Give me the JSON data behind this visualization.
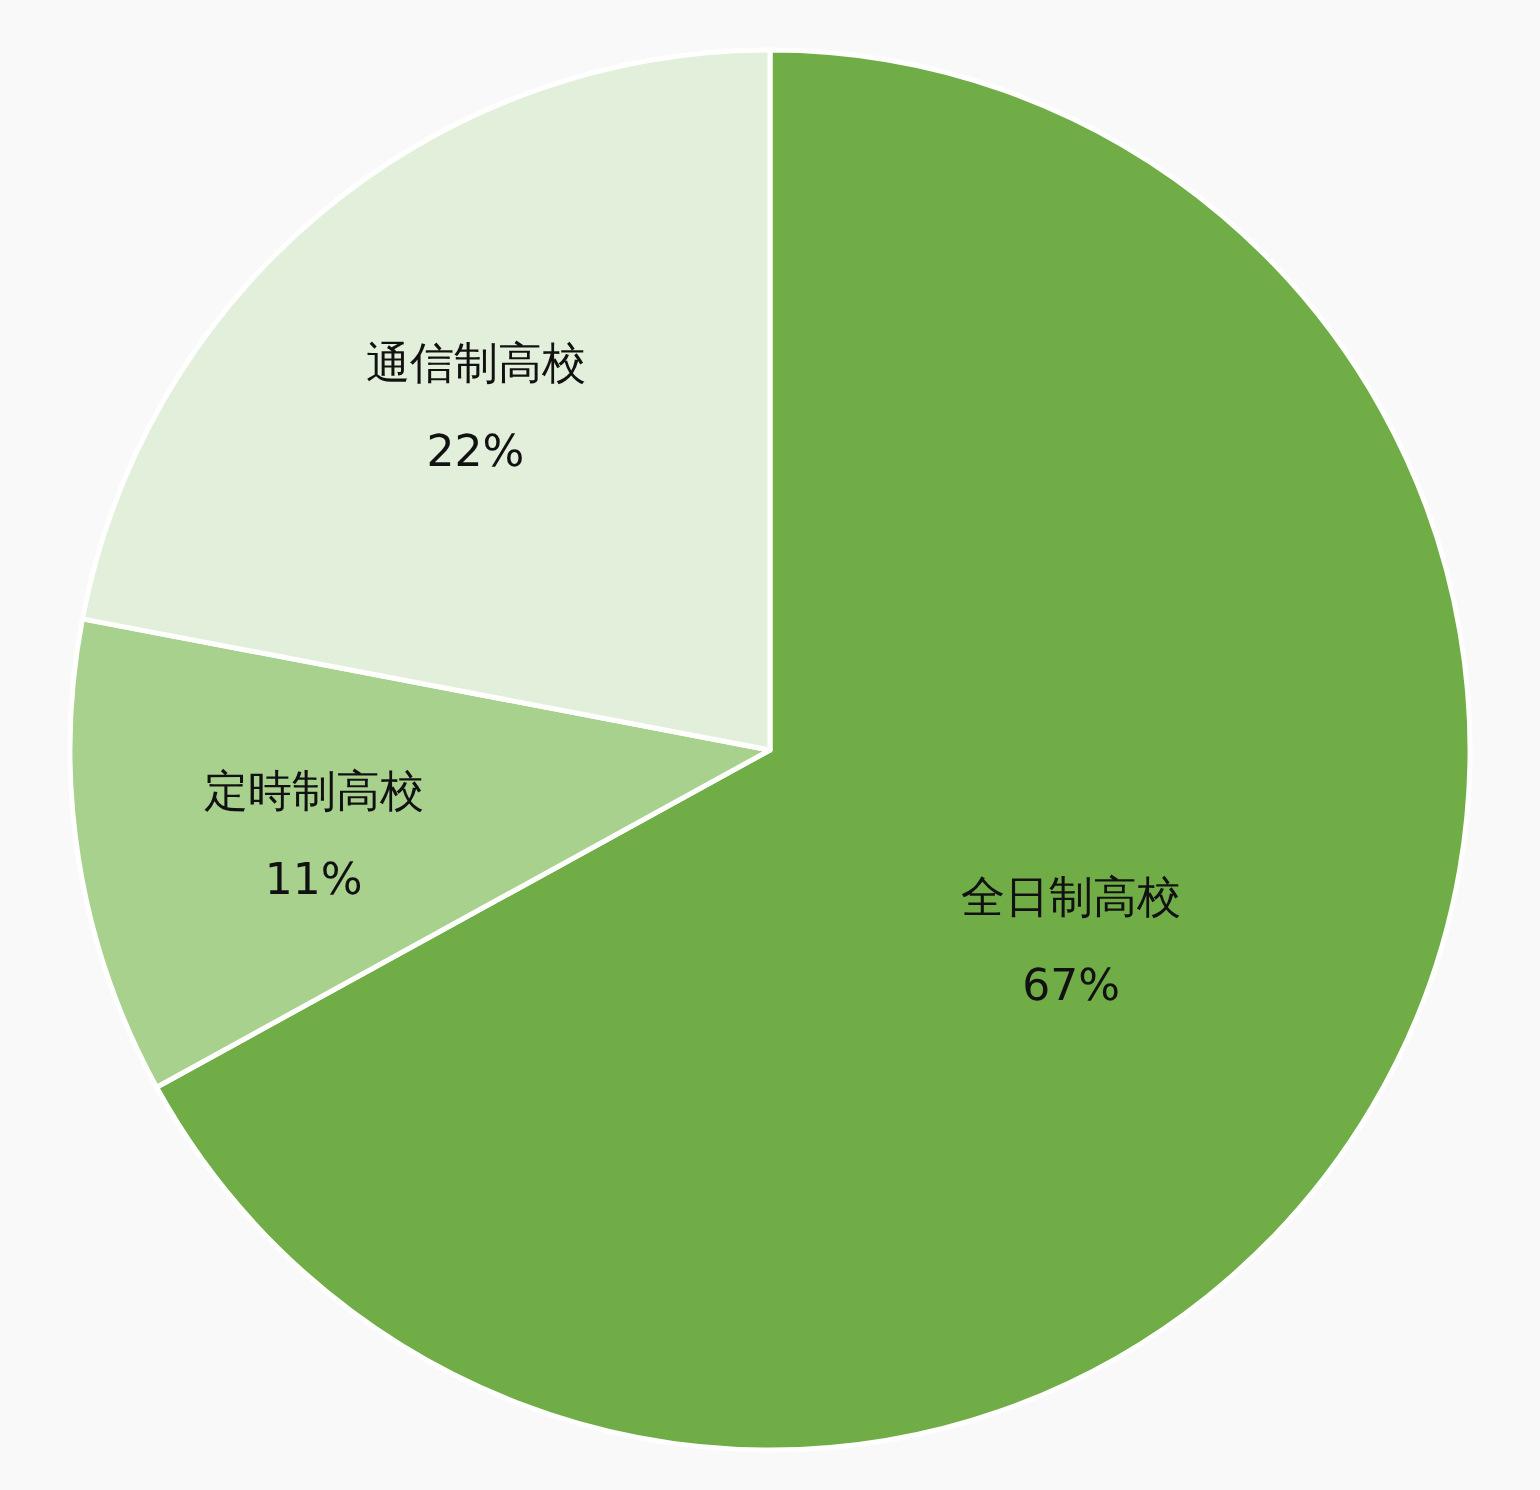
{
  "chart_data": {
    "type": "pie",
    "categories": [
      "全日制高校",
      "定時制高校",
      "通信制高校"
    ],
    "values": [
      67,
      11,
      22
    ],
    "colors": [
      "#70ad47",
      "#a9d18e",
      "#e2efda"
    ],
    "value_labels": [
      "67%",
      "11%",
      "22%"
    ]
  }
}
